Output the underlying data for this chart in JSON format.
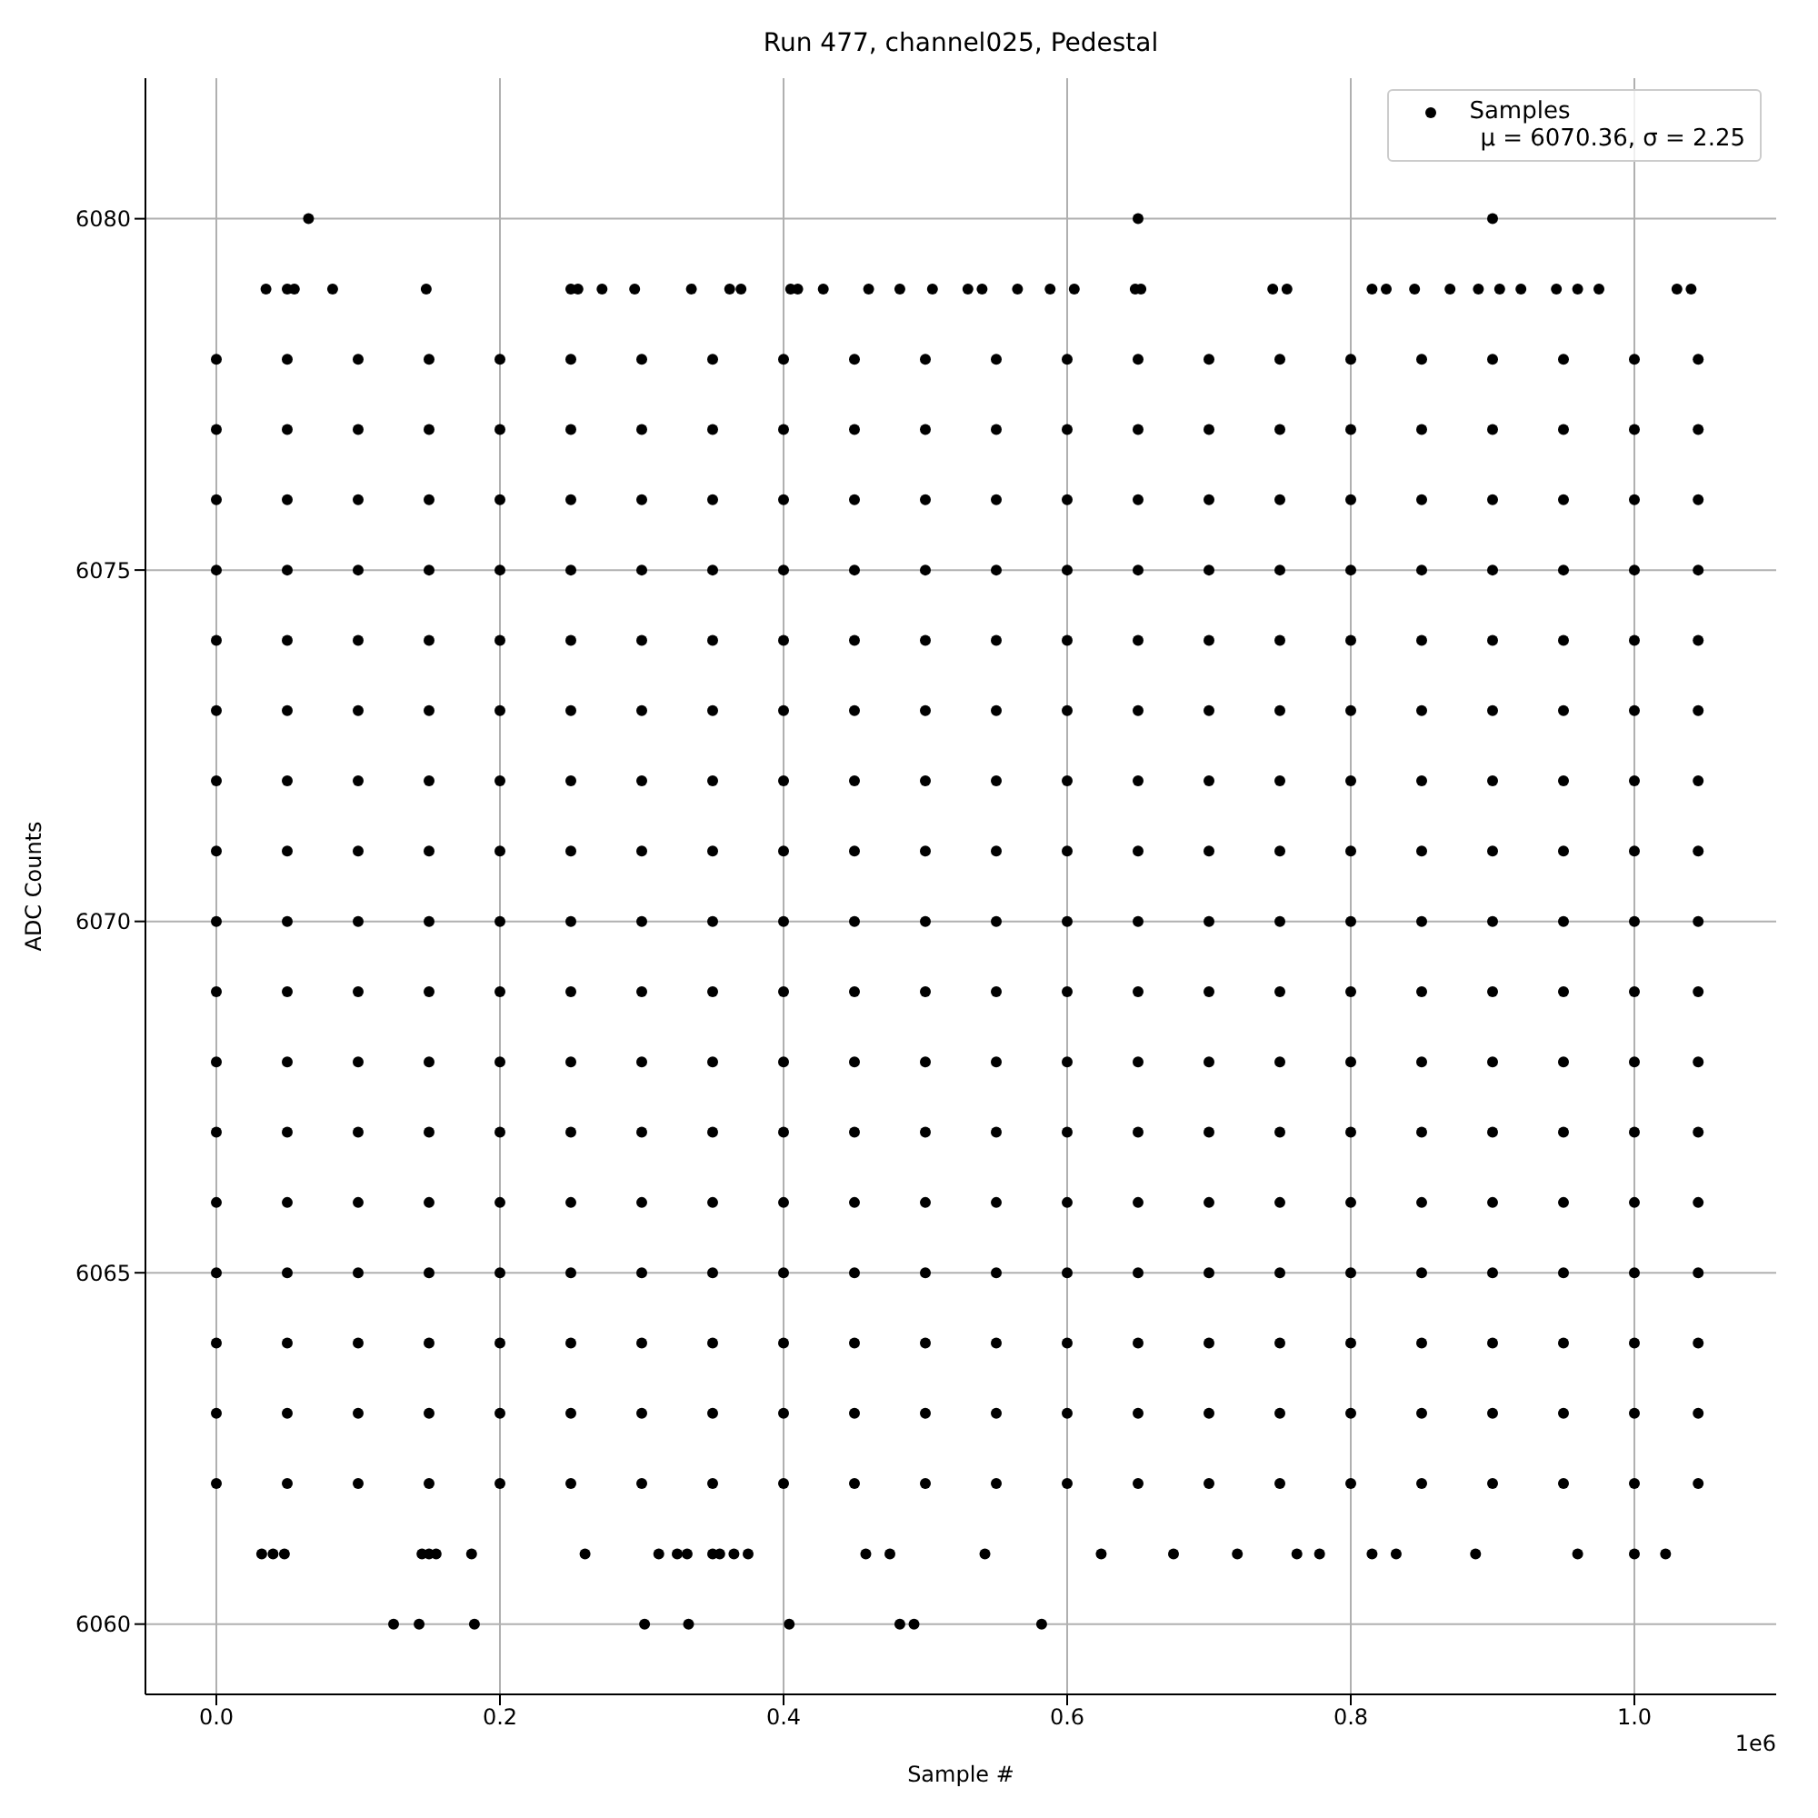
{
  "chart_data": {
    "type": "scatter",
    "title": "Run 477, channel025, Pedestal",
    "xlabel": "Sample #",
    "ylabel": "ADC Counts",
    "annotations": [
      "μ = 6070.36, σ = 2.25",
      "1e6"
    ],
    "x": [
      0,
      0.05,
      0.1,
      0.15,
      0.2,
      0.25,
      0.3,
      0.35,
      0.4,
      0.45,
      0.5,
      0.55,
      0.6,
      0.65,
      0.7,
      0.75,
      0.8,
      0.85,
      0.9,
      0.95,
      1.0,
      1.045
    ],
    "xlim": [
      -0.05,
      1.1
    ],
    "xticks": [
      {
        "value": 0,
        "label": "0.0"
      },
      0.2,
      0.4,
      0.6,
      0.8,
      {
        "value": 1,
        "label": "1.0"
      }
    ],
    "ylim": [
      6059,
      6082
    ],
    "yticks": [
      6060,
      6065,
      6070,
      6075,
      6080
    ],
    "grid": true,
    "legend": "top right",
    "marker": "circle",
    "series": [
      {
        "name": "Samples",
        "color": "#000000",
        "values": [
          6070,
          6070,
          6070,
          6070,
          6070,
          6070,
          6070,
          6070,
          6070,
          6070,
          6070,
          6070,
          6070,
          6070,
          6070,
          6070,
          6070,
          6070,
          6070,
          6070,
          6070,
          6070
        ]
      },
      {
        "color": "#000000",
        "values": [
          6062,
          6062,
          6062,
          6062,
          6062,
          6062,
          6062,
          6062,
          6062,
          6062,
          6062,
          6062,
          6062,
          6062,
          6062,
          6062,
          6062,
          6062,
          6062,
          6062,
          6062,
          6062
        ]
      },
      {
        "color": "#000000",
        "values": [
          6063,
          6063,
          6063,
          6063,
          6063,
          6063,
          6063,
          6063,
          6063,
          6063,
          6063,
          6063,
          6063,
          6063,
          6063,
          6063,
          6063,
          6063,
          6063,
          6063,
          6063,
          6063
        ]
      },
      {
        "color": "#000000",
        "values": [
          6064,
          6064,
          6064,
          6064,
          6064,
          6064,
          6064,
          6064,
          6064,
          6064,
          6064,
          6064,
          6064,
          6064,
          6064,
          6064,
          6064,
          6064,
          6064,
          6064,
          6064,
          6064
        ]
      },
      {
        "color": "#000000",
        "values": [
          6065,
          6065,
          6065,
          6065,
          6065,
          6065,
          6065,
          6065,
          6065,
          6065,
          6065,
          6065,
          6065,
          6065,
          6065,
          6065,
          6065,
          6065,
          6065,
          6065,
          6065,
          6065
        ]
      },
      {
        "color": "#000000",
        "values": [
          6066,
          6066,
          6066,
          6066,
          6066,
          6066,
          6066,
          6066,
          6066,
          6066,
          6066,
          6066,
          6066,
          6066,
          6066,
          6066,
          6066,
          6066,
          6066,
          6066,
          6066,
          6066
        ]
      },
      {
        "color": "#000000",
        "values": [
          6067,
          6067,
          6067,
          6067,
          6067,
          6067,
          6067,
          6067,
          6067,
          6067,
          6067,
          6067,
          6067,
          6067,
          6067,
          6067,
          6067,
          6067,
          6067,
          6067,
          6067,
          6067
        ]
      },
      {
        "color": "#000000",
        "values": [
          6068,
          6068,
          6068,
          6068,
          6068,
          6068,
          6068,
          6068,
          6068,
          6068,
          6068,
          6068,
          6068,
          6068,
          6068,
          6068,
          6068,
          6068,
          6068,
          6068,
          6068,
          6068
        ]
      },
      {
        "color": "#000000",
        "values": [
          6069,
          6069,
          6069,
          6069,
          6069,
          6069,
          6069,
          6069,
          6069,
          6069,
          6069,
          6069,
          6069,
          6069,
          6069,
          6069,
          6069,
          6069,
          6069,
          6069,
          6069,
          6069
        ]
      },
      {
        "color": "#000000",
        "values": [
          6071,
          6071,
          6071,
          6071,
          6071,
          6071,
          6071,
          6071,
          6071,
          6071,
          6071,
          6071,
          6071,
          6071,
          6071,
          6071,
          6071,
          6071,
          6071,
          6071,
          6071,
          6071
        ]
      },
      {
        "color": "#000000",
        "values": [
          6072,
          6072,
          6072,
          6072,
          6072,
          6072,
          6072,
          6072,
          6072,
          6072,
          6072,
          6072,
          6072,
          6072,
          6072,
          6072,
          6072,
          6072,
          6072,
          6072,
          6072,
          6072
        ]
      },
      {
        "color": "#000000",
        "values": [
          6073,
          6073,
          6073,
          6073,
          6073,
          6073,
          6073,
          6073,
          6073,
          6073,
          6073,
          6073,
          6073,
          6073,
          6073,
          6073,
          6073,
          6073,
          6073,
          6073,
          6073,
          6073
        ]
      },
      {
        "color": "#000000",
        "values": [
          6074,
          6074,
          6074,
          6074,
          6074,
          6074,
          6074,
          6074,
          6074,
          6074,
          6074,
          6074,
          6074,
          6074,
          6074,
          6074,
          6074,
          6074,
          6074,
          6074,
          6074,
          6074
        ]
      },
      {
        "color": "#000000",
        "values": [
          6075,
          6075,
          6075,
          6075,
          6075,
          6075,
          6075,
          6075,
          6075,
          6075,
          6075,
          6075,
          6075,
          6075,
          6075,
          6075,
          6075,
          6075,
          6075,
          6075,
          6075,
          6075
        ]
      },
      {
        "color": "#000000",
        "values": [
          6076,
          6076,
          6076,
          6076,
          6076,
          6076,
          6076,
          6076,
          6076,
          6076,
          6076,
          6076,
          6076,
          6076,
          6076,
          6076,
          6076,
          6076,
          6076,
          6076,
          6076,
          6076
        ]
      },
      {
        "color": "#000000",
        "values": [
          6077,
          6077,
          6077,
          6077,
          6077,
          6077,
          6077,
          6077,
          6077,
          6077,
          6077,
          6077,
          6077,
          6077,
          6077,
          6077,
          6077,
          6077,
          6077,
          6077,
          6077,
          6077
        ]
      },
      {
        "color": "#000000",
        "values": [
          6078,
          6078,
          6078,
          6078,
          6078,
          6078,
          6078,
          6078,
          6078,
          6078,
          6078,
          6078,
          6078,
          6078,
          6078,
          6078,
          6078,
          6078,
          6078,
          6078,
          6078,
          6078
        ]
      },
      {
        "color": "#000000",
        "x": [
          0.065,
          0.65,
          0.9
        ],
        "values": [
          6080,
          6080,
          6080
        ]
      },
      {
        "color": "#000000",
        "x": [
          0.035,
          0.05,
          0.055,
          0.082,
          0.148,
          0.25,
          0.255,
          0.272,
          0.295,
          0.335,
          0.362,
          0.37,
          0.405,
          0.41,
          0.428,
          0.46,
          0.482,
          0.505,
          0.53,
          0.54,
          0.565,
          0.588,
          0.605,
          0.648,
          0.652,
          0.745,
          0.755,
          0.815,
          0.825,
          0.845,
          0.87,
          0.89,
          0.905,
          0.92,
          0.945,
          0.96,
          0.975,
          1.03,
          1.04
        ],
        "values": [
          6079,
          6079,
          6079,
          6079,
          6079,
          6079,
          6079,
          6079,
          6079,
          6079,
          6079,
          6079,
          6079,
          6079,
          6079,
          6079,
          6079,
          6079,
          6079,
          6079,
          6079,
          6079,
          6079,
          6079,
          6079,
          6079,
          6079,
          6079,
          6079,
          6079,
          6079,
          6079,
          6079,
          6079,
          6079,
          6079,
          6079,
          6079,
          6079
        ]
      },
      {
        "color": "#000000",
        "x": [
          0.032,
          0.04,
          0.048,
          0.145,
          0.15,
          0.155,
          0.18,
          0.26,
          0.312,
          0.325,
          0.332,
          0.35,
          0.355,
          0.365,
          0.375,
          0.458,
          0.475,
          0.542,
          0.624,
          0.675,
          0.72,
          0.762,
          0.778,
          0.815,
          0.832,
          0.888,
          0.96,
          1.0,
          1.022
        ],
        "values": [
          6061,
          6061,
          6061,
          6061,
          6061,
          6061,
          6061,
          6061,
          6061,
          6061,
          6061,
          6061,
          6061,
          6061,
          6061,
          6061,
          6061,
          6061,
          6061,
          6061,
          6061,
          6061,
          6061,
          6061,
          6061,
          6061,
          6061,
          6061,
          6061
        ]
      },
      {
        "color": "#000000",
        "x": [
          0.125,
          0.143,
          0.182,
          0.302,
          0.333,
          0.404,
          0.482,
          0.492,
          0.582
        ],
        "values": [
          6060,
          6060,
          6060,
          6060,
          6060,
          6060,
          6060,
          6060,
          6060
        ]
      }
    ]
  }
}
